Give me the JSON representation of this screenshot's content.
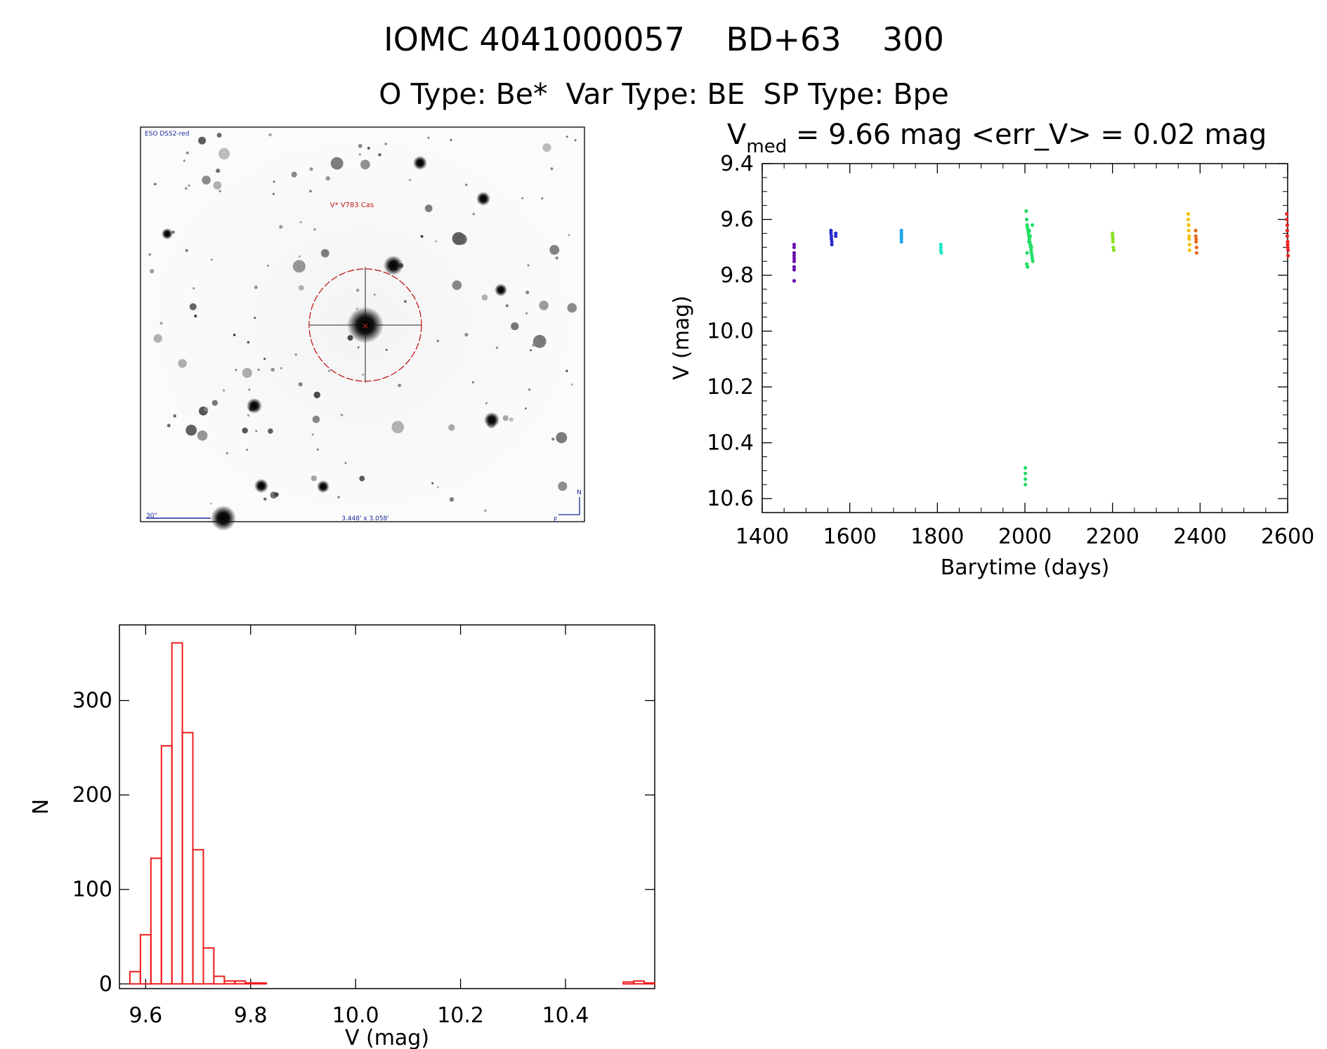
{
  "header": {
    "title": "IOMC 4041000057    BD+63    300",
    "subtitle": "O Type: Be*  Var Type: BE  SP Type: Bpe"
  },
  "finder": {
    "survey_label": "ESO DSS2-red",
    "target_label": "V* V783 Cas",
    "scale_label": "30\"",
    "fov_label": "3.448' x 3.058'",
    "north_label": "N",
    "east_label": "E"
  },
  "light_curve": {
    "stats_prefix": "V",
    "stats_sub": "med",
    "stats_rest": " = 9.66 mag <err_V> = 0.02 mag",
    "xlabel": "Barytime (days)",
    "ylabel": "V (mag)"
  },
  "histogram": {
    "xlabel": "V (mag)",
    "ylabel": "N"
  },
  "chart_data": [
    {
      "type": "scatter",
      "xlim": [
        1400,
        2600
      ],
      "ylim": [
        10.65,
        9.4
      ],
      "y_inverted": true,
      "xticks": [
        1400,
        1600,
        1800,
        2000,
        2200,
        2400,
        2600
      ],
      "xtick_labels": [
        "1400",
        "1600",
        "1800",
        "2000",
        "2200",
        "2400",
        "2600"
      ],
      "yticks": [
        9.4,
        9.6,
        9.8,
        10.0,
        10.2,
        10.4,
        10.6
      ],
      "ytick_labels": [
        "9.4",
        "9.6",
        "9.8",
        "10.0",
        "10.2",
        "10.4",
        "10.6"
      ],
      "grid": false,
      "series": [
        {
          "color": "#6a0dad",
          "x": [
            1473,
            1473,
            1473,
            1473,
            1473,
            1473,
            1473,
            1473,
            1473
          ],
          "y": [
            9.69,
            9.7,
            9.72,
            9.73,
            9.74,
            9.75,
            9.77,
            9.78,
            9.82
          ]
        },
        {
          "color": "#2a2ad0",
          "x": [
            1557,
            1557,
            1558,
            1558,
            1559,
            1559,
            1568,
            1568
          ],
          "y": [
            9.64,
            9.65,
            9.66,
            9.67,
            9.68,
            9.69,
            9.65,
            9.66
          ]
        },
        {
          "color": "#1fa2e6",
          "x": [
            1718,
            1718,
            1718,
            1718,
            1718
          ],
          "y": [
            9.64,
            9.65,
            9.66,
            9.67,
            9.68
          ]
        },
        {
          "color": "#1ee6c8",
          "x": [
            1808,
            1808,
            1808,
            1809
          ],
          "y": [
            9.69,
            9.7,
            9.71,
            9.72
          ]
        },
        {
          "color": "#22e066",
          "x": [
            2003,
            2004,
            2005,
            2006,
            2007,
            2008,
            2009,
            2010,
            2011,
            2012,
            2013,
            2014,
            2015,
            2016,
            2017,
            2018,
            2004,
            2006,
            2009,
            2012,
            2015,
            2017,
            2005,
            2010,
            2013,
            2001,
            2001,
            2001,
            2001
          ],
          "y": [
            9.57,
            9.6,
            9.62,
            9.63,
            9.64,
            9.65,
            9.66,
            9.67,
            9.68,
            9.69,
            9.7,
            9.71,
            9.72,
            9.73,
            9.74,
            9.75,
            9.76,
            9.77,
            9.68,
            9.66,
            9.7,
            9.62,
            9.72,
            9.64,
            9.69,
            10.49,
            10.51,
            10.53,
            10.55
          ]
        },
        {
          "color": "#88e222",
          "x": [
            2200,
            2200,
            2201,
            2201,
            2202,
            2203
          ],
          "y": [
            9.65,
            9.66,
            9.67,
            9.68,
            9.7,
            9.71
          ]
        },
        {
          "color": "#f2c20c",
          "x": [
            2373,
            2373,
            2374,
            2374,
            2375,
            2375,
            2376,
            2376
          ],
          "y": [
            9.58,
            9.6,
            9.62,
            9.64,
            9.66,
            9.67,
            9.69,
            9.71
          ]
        },
        {
          "color": "#e66a1a",
          "x": [
            2390,
            2390,
            2391,
            2391,
            2392,
            2392
          ],
          "y": [
            9.64,
            9.66,
            9.67,
            9.68,
            9.7,
            9.72
          ]
        },
        {
          "color": "#ee2222",
          "x": [
            2598,
            2598,
            2599,
            2599,
            2599,
            2600,
            2600,
            2600,
            2601,
            2601
          ],
          "y": [
            9.58,
            9.6,
            9.62,
            9.64,
            9.66,
            9.68,
            9.69,
            9.7,
            9.71,
            9.73
          ]
        }
      ]
    },
    {
      "type": "bar",
      "histogram": true,
      "color": "#ee1c1c",
      "bin_width": 0.02,
      "bin_start": 9.57,
      "counts": [
        13,
        52,
        133,
        252,
        361,
        266,
        142,
        38,
        8,
        3,
        3,
        1,
        1,
        0,
        0,
        0,
        0,
        0,
        0,
        0,
        0,
        0,
        0,
        0,
        0,
        0,
        0,
        0,
        0,
        0,
        0,
        0,
        0,
        0,
        0,
        0,
        0,
        0,
        0,
        0,
        0,
        0,
        0,
        0,
        0,
        0,
        0,
        2,
        3,
        1
      ],
      "xlim": [
        9.55,
        10.57
      ],
      "ylim": [
        -5,
        380
      ],
      "xticks": [
        9.6,
        9.8,
        10.0,
        10.2,
        10.4
      ],
      "xtick_labels": [
        "9.6",
        "9.8",
        "10.0",
        "10.2",
        "10.4"
      ],
      "yticks": [
        0,
        100,
        200,
        300
      ],
      "ytick_labels": [
        "0",
        "100",
        "200",
        "300"
      ],
      "grid": false
    }
  ]
}
